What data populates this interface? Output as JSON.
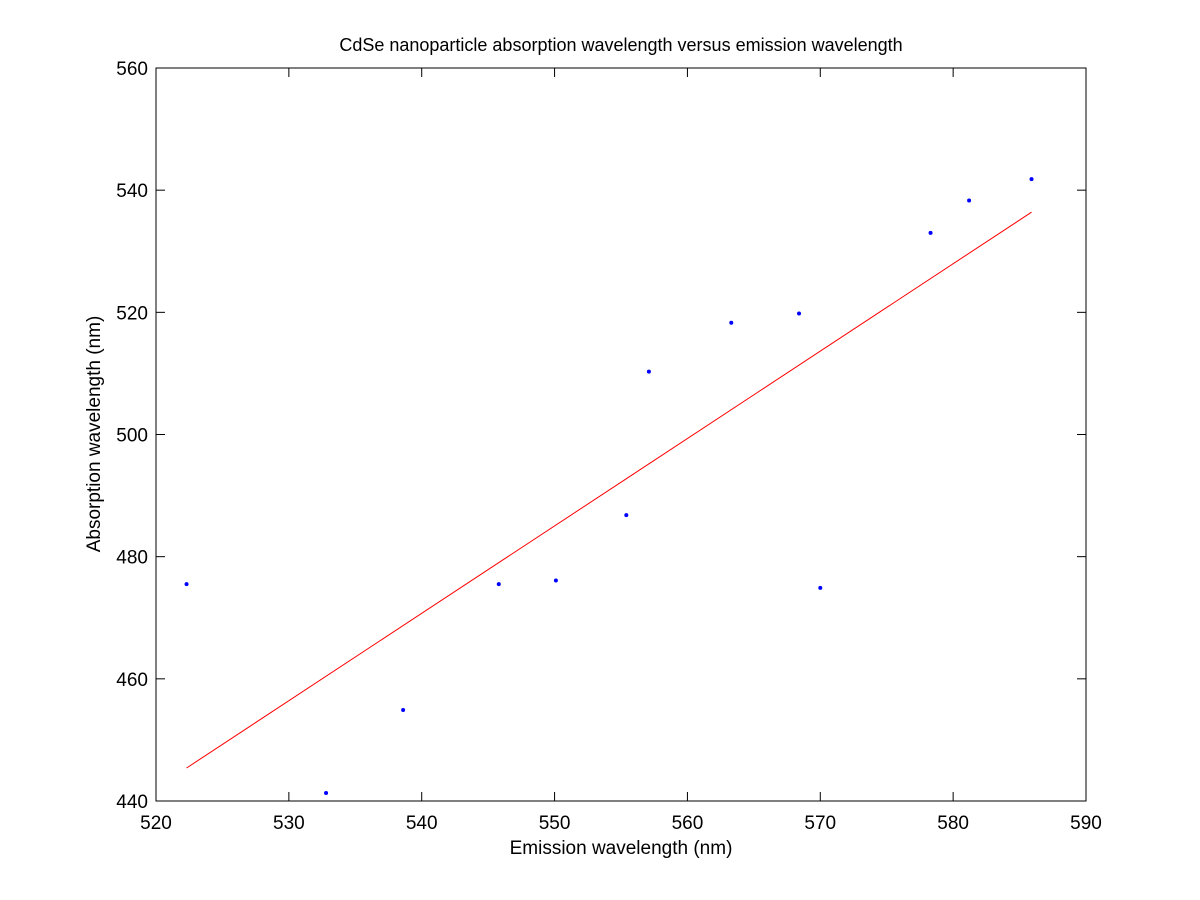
{
  "chart_data": {
    "type": "scatter",
    "title": "CdSe nanoparticle absorption wavelength versus emission wavelength",
    "xlabel": "Emission wavelength (nm)",
    "ylabel": "Absorption wavelength (nm)",
    "xlim": [
      520,
      590
    ],
    "ylim": [
      440,
      560
    ],
    "xticks": [
      520,
      530,
      540,
      550,
      560,
      570,
      580,
      590
    ],
    "yticks": [
      440,
      460,
      480,
      500,
      520,
      540,
      560
    ],
    "grid": false,
    "series": [
      {
        "kind": "points",
        "color": "#0000ff",
        "x": [
          522.3,
          532.8,
          538.6,
          545.8,
          550.1,
          555.4,
          557.1,
          563.3,
          568.4,
          570.0,
          578.3,
          581.2,
          585.9
        ],
        "y": [
          475.5,
          441.3,
          454.9,
          475.5,
          476.1,
          486.8,
          510.3,
          518.3,
          519.8,
          474.9,
          533.0,
          538.3,
          541.8
        ]
      },
      {
        "kind": "fit-line",
        "color": "#ff0000",
        "x": [
          522.3,
          585.9
        ],
        "y": [
          445.4,
          536.4
        ]
      }
    ]
  }
}
